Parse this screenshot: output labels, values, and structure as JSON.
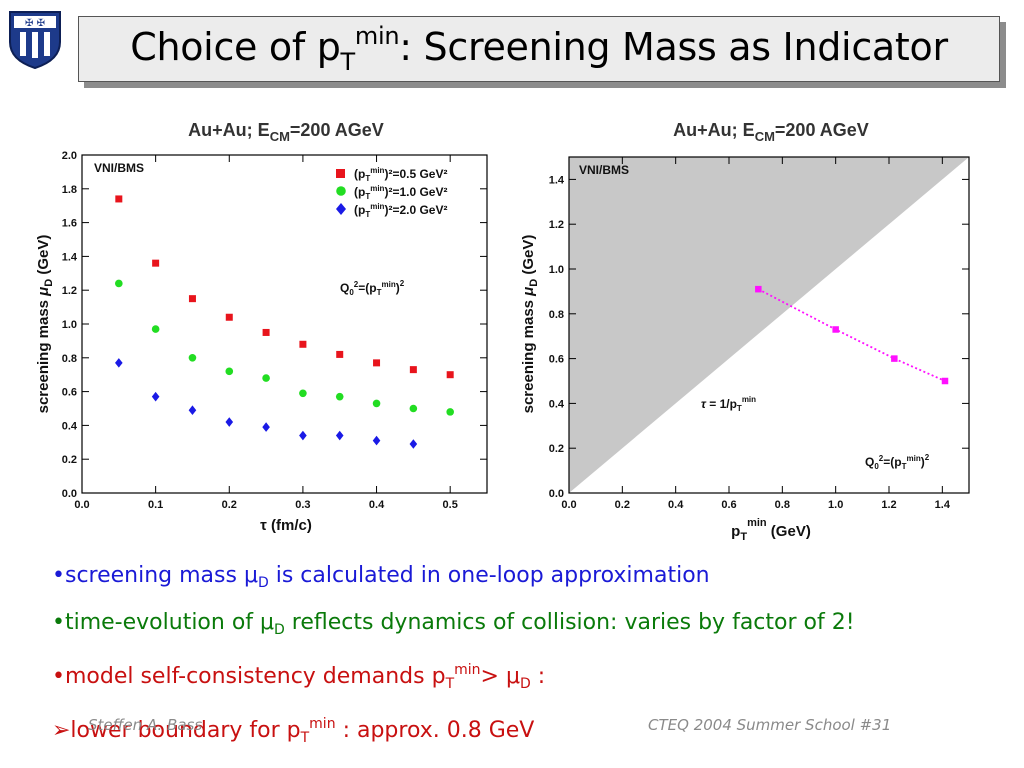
{
  "slide": {
    "title_pre": "Choice of p",
    "title_sub": "T",
    "title_sup": "min",
    "title_post": ": Screening Mass as Indicator",
    "footer_left": "Steffen A. Bass",
    "footer_right": "CTEQ 2004 Summer School  #31"
  },
  "bullets": {
    "b1_pre": "•screening mass μ",
    "b1_sub": "D",
    "b1_post": " is calculated in one-loop approximation",
    "b2_pre": "•time-evolution of μ",
    "b2_sub": "D",
    "b2_post": " reflects dynamics of collision: varies by factor of 2!",
    "b3_pre": "•model self-consistency demands p",
    "b3_sub1": "T",
    "b3_sup": "min",
    "b3_mid": "> μ",
    "b3_sub2": "D",
    "b3_post": " :",
    "b4_pre": "➢lower boundary  for p",
    "b4_sub": "T",
    "b4_sup": "min",
    "b4_post": " : approx. 0.8 GeV"
  },
  "colors": {
    "blue_text": "#1a1ad6",
    "green_text": "#0a7a0a",
    "red_text": "#c81010",
    "series_red": "#e8141c",
    "series_green": "#22dd22",
    "series_blue": "#1a1ae6",
    "series_magenta": "#ff10ff",
    "shade": "#c8c8c8"
  },
  "chart_data": [
    {
      "type": "scatter",
      "title_main": "Au+Au; E",
      "title_sub": "CM",
      "title_post": "=200 AGeV",
      "ylabel_pre": "screening mass ",
      "ylabel_mu": "μ",
      "ylabel_sub": "D",
      "ylabel_post": " (GeV)",
      "xlabel": "τ (fm/c)",
      "xlim": [
        0.0,
        0.55
      ],
      "ylim": [
        0.0,
        2.0
      ],
      "xticks": [
        "0.0",
        "0.1",
        "0.2",
        "0.3",
        "0.4",
        "0.5"
      ],
      "yticks": [
        "0.0",
        "0.2",
        "0.4",
        "0.6",
        "0.8",
        "1.0",
        "1.2",
        "1.4",
        "1.6",
        "1.8",
        "2.0"
      ],
      "annotation_model": "VNI/BMS",
      "annotation_q0": "Q0²=(pTmin)²",
      "legend_position": "top-right",
      "series": [
        {
          "label_pre": "(p",
          "label_sub": "T",
          "label_sup": "min",
          "label_post": ")²=0.5 GeV²",
          "marker": "square",
          "color": "#e8141c",
          "x": [
            0.05,
            0.1,
            0.15,
            0.2,
            0.25,
            0.3,
            0.35,
            0.4,
            0.45,
            0.5
          ],
          "y": [
            1.74,
            1.36,
            1.15,
            1.04,
            0.95,
            0.88,
            0.82,
            0.77,
            0.73,
            0.7
          ]
        },
        {
          "label_pre": "(p",
          "label_sub": "T",
          "label_sup": "min",
          "label_post": ")²=1.0 GeV²",
          "marker": "circle",
          "color": "#22dd22",
          "x": [
            0.05,
            0.1,
            0.15,
            0.2,
            0.25,
            0.3,
            0.35,
            0.4,
            0.45,
            0.5
          ],
          "y": [
            1.24,
            0.97,
            0.8,
            0.72,
            0.68,
            0.59,
            0.57,
            0.53,
            0.5,
            0.48
          ]
        },
        {
          "label_pre": "(p",
          "label_sub": "T",
          "label_sup": "min",
          "label_post": ")²=2.0 GeV²",
          "marker": "diamond",
          "color": "#1a1ae6",
          "x": [
            0.05,
            0.1,
            0.15,
            0.2,
            0.25,
            0.3,
            0.35,
            0.4,
            0.45
          ],
          "y": [
            0.77,
            0.57,
            0.49,
            0.42,
            0.39,
            0.34,
            0.34,
            0.31,
            0.29
          ]
        }
      ]
    },
    {
      "type": "line",
      "title_main": "Au+Au; E",
      "title_sub": "CM",
      "title_post": "=200 AGeV",
      "ylabel_pre": "screening mass ",
      "ylabel_mu": "μ",
      "ylabel_sub": "D",
      "ylabel_post": " (GeV)",
      "xlabel": "pTmin (GeV)",
      "xlim": [
        0.0,
        1.5
      ],
      "ylim": [
        0.0,
        1.5
      ],
      "xticks": [
        "0.0",
        "0.2",
        "0.4",
        "0.6",
        "0.8",
        "1.0",
        "1.2",
        "1.4"
      ],
      "yticks": [
        "0.0",
        "0.2",
        "0.4",
        "0.6",
        "0.8",
        "1.0",
        "1.2",
        "1.4"
      ],
      "annotation_model": "VNI/BMS",
      "annotation_tau": "τ = 1/pTmin",
      "annotation_q0": "Q0²=(pTmin)²",
      "shaded_region": "above diagonal y = x",
      "series": [
        {
          "marker": "square",
          "line": "dotted",
          "color": "#ff10ff",
          "x": [
            0.71,
            1.0,
            1.22,
            1.41
          ],
          "y": [
            0.91,
            0.73,
            0.6,
            0.5
          ]
        }
      ]
    }
  ]
}
